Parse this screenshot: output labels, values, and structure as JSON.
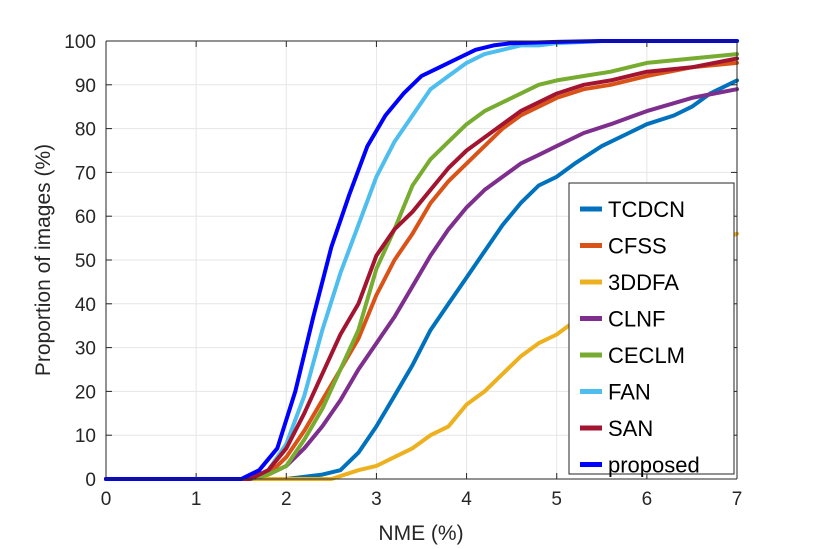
{
  "chart_data": {
    "type": "line",
    "title": "",
    "xlabel": "NME (%)",
    "ylabel": "Proportion of images (%)",
    "xlim": [
      0,
      7
    ],
    "ylim": [
      0,
      100
    ],
    "xticks": [
      0,
      1,
      2,
      3,
      4,
      5,
      6,
      7
    ],
    "yticks": [
      0,
      10,
      20,
      30,
      40,
      50,
      60,
      70,
      80,
      90,
      100
    ],
    "grid": true,
    "legend_position": "bottom-right",
    "series": [
      {
        "name": "TCDCN",
        "color": "#0072BD",
        "x": [
          0,
          2.0,
          2.4,
          2.6,
          2.8,
          3.0,
          3.2,
          3.4,
          3.6,
          3.8,
          4.0,
          4.2,
          4.4,
          4.6,
          4.8,
          5.0,
          5.2,
          5.5,
          5.8,
          6.0,
          6.3,
          6.5,
          6.7,
          7.0
        ],
        "y": [
          0,
          0,
          1,
          2,
          6,
          12,
          19,
          26,
          34,
          40,
          46,
          52,
          58,
          63,
          67,
          69,
          72,
          76,
          79,
          81,
          83,
          85,
          88,
          91
        ]
      },
      {
        "name": "CFSS",
        "color": "#D95319",
        "x": [
          0,
          1.6,
          1.8,
          2.0,
          2.2,
          2.4,
          2.6,
          2.8,
          3.0,
          3.2,
          3.4,
          3.6,
          3.8,
          4.0,
          4.2,
          4.4,
          4.6,
          4.8,
          5.0,
          5.3,
          5.6,
          6.0,
          6.5,
          7.0
        ],
        "y": [
          0,
          0,
          1,
          5,
          11,
          18,
          25,
          32,
          42,
          50,
          56,
          63,
          68,
          72,
          76,
          80,
          83,
          85,
          87,
          89,
          90,
          92,
          94,
          95
        ]
      },
      {
        "name": "3DDFA",
        "color": "#EDB120",
        "x": [
          0,
          2.5,
          2.8,
          3.0,
          3.2,
          3.4,
          3.6,
          3.8,
          4.0,
          4.2,
          4.4,
          4.6,
          4.8,
          5.0,
          5.2,
          5.4,
          5.6,
          5.8,
          6.0,
          6.3,
          6.6,
          7.0
        ],
        "y": [
          0,
          0,
          2,
          3,
          5,
          7,
          10,
          12,
          17,
          20,
          24,
          28,
          31,
          33,
          36,
          38,
          40,
          43,
          46,
          49,
          53,
          56
        ]
      },
      {
        "name": "CLNF",
        "color": "#7E2F8E",
        "x": [
          0,
          1.6,
          1.8,
          2.0,
          2.2,
          2.4,
          2.6,
          2.8,
          3.0,
          3.2,
          3.4,
          3.6,
          3.8,
          4.0,
          4.2,
          4.4,
          4.6,
          4.8,
          5.0,
          5.3,
          5.6,
          6.0,
          6.5,
          7.0
        ],
        "y": [
          0,
          0,
          1,
          3,
          7,
          12,
          18,
          25,
          31,
          37,
          44,
          51,
          57,
          62,
          66,
          69,
          72,
          74,
          76,
          79,
          81,
          84,
          87,
          89
        ]
      },
      {
        "name": "CECLM",
        "color": "#77AC30",
        "x": [
          0,
          1.6,
          1.8,
          2.0,
          2.2,
          2.4,
          2.6,
          2.8,
          3.0,
          3.2,
          3.4,
          3.6,
          3.8,
          4.0,
          4.2,
          4.4,
          4.6,
          4.8,
          5.0,
          5.3,
          5.6,
          6.0,
          6.5,
          7.0
        ],
        "y": [
          0,
          0,
          1,
          3,
          9,
          16,
          25,
          34,
          48,
          57,
          67,
          73,
          77,
          81,
          84,
          86,
          88,
          90,
          91,
          92,
          93,
          95,
          96,
          97
        ]
      },
      {
        "name": "FAN",
        "color": "#4DBEEE",
        "x": [
          0,
          1.6,
          1.8,
          2.0,
          2.2,
          2.4,
          2.6,
          2.8,
          3.0,
          3.2,
          3.4,
          3.6,
          3.8,
          4.0,
          4.2,
          4.4,
          4.6,
          4.8,
          5.0,
          5.5,
          6.0,
          7.0
        ],
        "y": [
          0,
          0,
          2,
          8,
          19,
          34,
          47,
          58,
          69,
          77,
          83,
          89,
          92,
          95,
          97,
          98,
          99,
          99,
          99.5,
          100,
          100,
          100
        ]
      },
      {
        "name": "SAN",
        "color": "#A2142F",
        "x": [
          0,
          1.6,
          1.8,
          2.0,
          2.2,
          2.4,
          2.6,
          2.8,
          3.0,
          3.2,
          3.4,
          3.6,
          3.8,
          4.0,
          4.2,
          4.4,
          4.6,
          4.8,
          5.0,
          5.3,
          5.6,
          6.0,
          6.5,
          7.0
        ],
        "y": [
          0,
          0,
          2,
          7,
          15,
          24,
          33,
          40,
          51,
          57,
          61,
          66,
          71,
          75,
          78,
          81,
          84,
          86,
          88,
          90,
          91,
          93,
          94,
          96
        ]
      },
      {
        "name": "proposed",
        "color": "#0000FF",
        "x": [
          0,
          1.5,
          1.7,
          1.9,
          2.1,
          2.3,
          2.5,
          2.7,
          2.9,
          3.1,
          3.3,
          3.5,
          3.7,
          3.9,
          4.1,
          4.3,
          4.5,
          5.0,
          5.5,
          6.0,
          7.0
        ],
        "y": [
          0,
          0,
          2,
          7,
          20,
          37,
          53,
          65,
          76,
          83,
          88,
          92,
          94,
          96,
          98,
          99,
          99.5,
          99.8,
          100,
          100,
          100
        ]
      }
    ]
  }
}
